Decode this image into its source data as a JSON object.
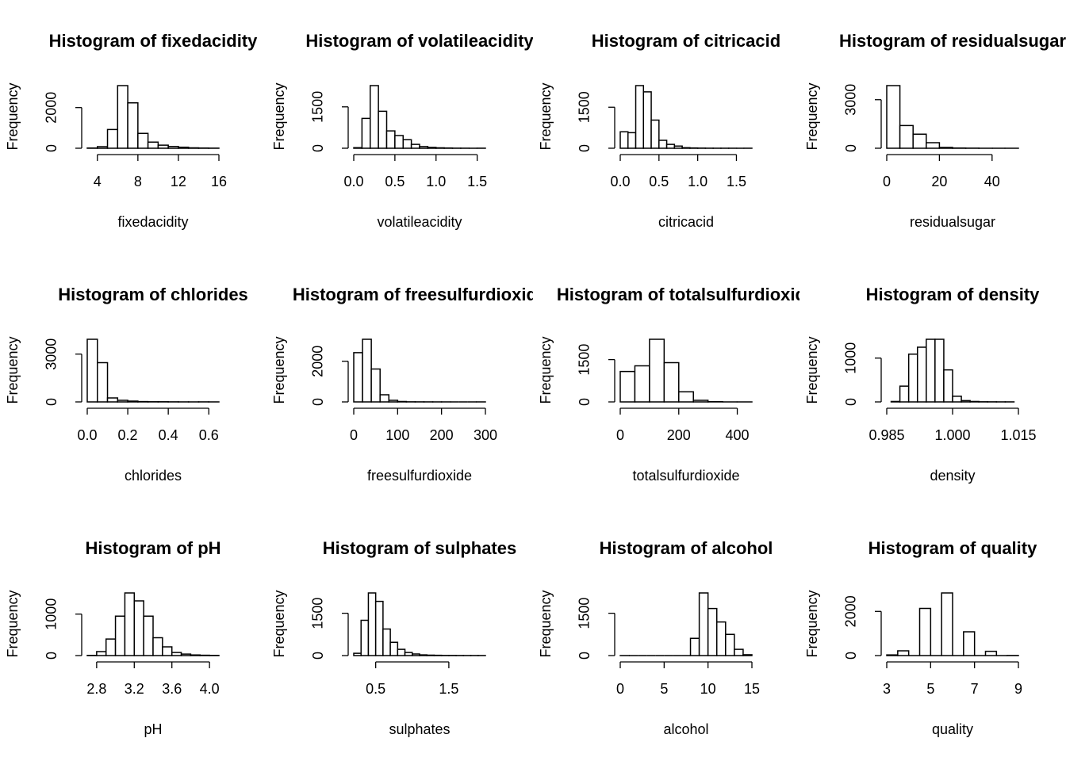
{
  "chart_data": [
    {
      "type": "histogram",
      "title": "Histogram of fixedacidity",
      "xlabel": "fixedacidity",
      "ylabel": "Frequency",
      "color": "#ffffff",
      "edgecolor": "#000000",
      "bins": [
        3,
        4,
        5,
        6,
        7,
        8,
        9,
        10,
        11,
        12,
        13,
        14,
        15,
        16
      ],
      "counts": [
        10,
        80,
        920,
        3080,
        2230,
        730,
        300,
        150,
        90,
        50,
        20,
        10,
        5
      ],
      "xlim": [
        3,
        16
      ],
      "ylim": [
        0,
        3080
      ],
      "xticks": [
        4,
        8,
        12,
        16
      ],
      "yticks": [
        0,
        2000
      ]
    },
    {
      "type": "histogram",
      "title": "Histogram of volatileacidity",
      "xlabel": "volatileacidity",
      "ylabel": "Frequency",
      "color": "#ffffff",
      "edgecolor": "#000000",
      "bins": [
        0,
        0.1,
        0.2,
        0.3,
        0.4,
        0.5,
        0.6,
        0.7,
        0.8,
        0.9,
        1,
        1.1,
        1.2,
        1.3,
        1.4,
        1.5,
        1.6
      ],
      "counts": [
        20,
        1080,
        2270,
        1340,
        630,
        460,
        310,
        140,
        60,
        30,
        15,
        8,
        3,
        2,
        0,
        2
      ],
      "xlim": [
        0,
        1.6
      ],
      "ylim": [
        0,
        2270
      ],
      "xticks": [
        {
          "value": 0,
          "label": "0.0"
        },
        0.5,
        {
          "value": 1,
          "label": "1.0"
        },
        1.5
      ],
      "yticks": [
        0,
        1500
      ]
    },
    {
      "type": "histogram",
      "title": "Histogram of citricacid",
      "xlabel": "citricacid",
      "ylabel": "Frequency",
      "color": "#ffffff",
      "edgecolor": "#000000",
      "bins": [
        0,
        0.1,
        0.2,
        0.3,
        0.4,
        0.5,
        0.6,
        0.7,
        0.8,
        0.9,
        1,
        1.1,
        1.2,
        1.3,
        1.4,
        1.5,
        1.6,
        1.7
      ],
      "counts": [
        600,
        570,
        2290,
        2060,
        1030,
        290,
        140,
        80,
        20,
        10,
        5,
        2,
        1,
        1,
        1,
        0,
        1
      ],
      "xlim": [
        0,
        1.7
      ],
      "ylim": [
        0,
        2290
      ],
      "xticks": [
        {
          "value": 0,
          "label": "0.0"
        },
        0.5,
        {
          "value": 1,
          "label": "1.0"
        },
        1.5
      ],
      "yticks": [
        0,
        1500
      ]
    },
    {
      "type": "histogram",
      "title": "Histogram of residualsugar",
      "xlabel": "residualsugar",
      "ylabel": "Frequency",
      "color": "#ffffff",
      "edgecolor": "#000000",
      "bins": [
        0,
        5,
        10,
        15,
        20,
        25,
        30,
        35,
        40,
        45,
        50
      ],
      "counts": [
        3870,
        1400,
        870,
        340,
        50,
        10,
        5,
        2,
        0,
        1
      ],
      "xlim": [
        0,
        50
      ],
      "ylim": [
        0,
        3870
      ],
      "xticks": [
        0,
        20,
        40
      ],
      "yticks": [
        0,
        3000
      ]
    },
    {
      "type": "histogram",
      "title": "Histogram of chlorides",
      "xlabel": "chlorides",
      "ylabel": "Frequency",
      "color": "#ffffff",
      "edgecolor": "#000000",
      "bins": [
        0,
        0.05,
        0.1,
        0.15,
        0.2,
        0.25,
        0.3,
        0.35,
        0.4,
        0.45,
        0.5,
        0.55,
        0.6,
        0.65
      ],
      "counts": [
        3930,
        2460,
        250,
        100,
        50,
        20,
        10,
        10,
        5,
        2,
        1,
        3,
        1
      ],
      "xlim": [
        0,
        0.65
      ],
      "ylim": [
        0,
        3930
      ],
      "xticks": [
        {
          "value": 0,
          "label": "0.0"
        },
        0.2,
        0.4,
        0.6
      ],
      "yticks": [
        0,
        3000
      ]
    },
    {
      "type": "histogram",
      "title": "Histogram of freesulfurdioxide",
      "xlabel": "freesulfurdioxide",
      "ylabel": "Frequency",
      "color": "#ffffff",
      "edgecolor": "#000000",
      "bins": [
        0,
        20,
        40,
        60,
        80,
        100,
        120,
        140,
        160,
        180,
        200,
        220,
        240,
        260,
        280,
        300
      ],
      "counts": [
        2420,
        3080,
        1620,
        350,
        80,
        20,
        5,
        3,
        2,
        1,
        1,
        0,
        0,
        0,
        1
      ],
      "xlim": [
        0,
        300
      ],
      "ylim": [
        0,
        3080
      ],
      "xticks": [
        0,
        100,
        200,
        300
      ],
      "yticks": [
        0,
        2000
      ]
    },
    {
      "type": "histogram",
      "title": "Histogram of totalsulfurdioxide",
      "xlabel": "totalsulfurdioxide",
      "ylabel": "Frequency",
      "color": "#ffffff",
      "edgecolor": "#000000",
      "bins": [
        0,
        50,
        100,
        150,
        200,
        250,
        300,
        350,
        400,
        450
      ],
      "counts": [
        1080,
        1280,
        2220,
        1390,
        360,
        55,
        8,
        0,
        1
      ],
      "xlim": [
        0,
        450
      ],
      "ylim": [
        0,
        2220
      ],
      "xticks": [
        0,
        200,
        400
      ],
      "yticks": [
        0,
        1500
      ]
    },
    {
      "type": "histogram",
      "title": "Histogram of density",
      "xlabel": "density",
      "ylabel": "Frequency",
      "color": "#ffffff",
      "edgecolor": "#000000",
      "bins": [
        0.986,
        0.988,
        0.99,
        0.992,
        0.994,
        0.996,
        0.998,
        1,
        1.002,
        1.004,
        1.006,
        1.008,
        1.01,
        1.012,
        1.014
      ],
      "counts": [
        10,
        360,
        1090,
        1250,
        1430,
        1430,
        730,
        130,
        30,
        10,
        3,
        2,
        1,
        1
      ],
      "xlim": [
        0.985,
        1.015
      ],
      "ylim": [
        0,
        1430
      ],
      "xticks": [
        0.985,
        {
          "value": 1,
          "label": "1.000"
        },
        1.015
      ],
      "yticks": [
        0,
        1000
      ]
    },
    {
      "type": "histogram",
      "title": "Histogram of pH",
      "xlabel": "pH",
      "ylabel": "Frequency",
      "color": "#ffffff",
      "edgecolor": "#000000",
      "bins": [
        2.7,
        2.8,
        2.9,
        3,
        3.1,
        3.2,
        3.3,
        3.4,
        3.5,
        3.6,
        3.7,
        3.8,
        3.9,
        4,
        4.1
      ],
      "counts": [
        5,
        95,
        400,
        950,
        1510,
        1320,
        950,
        430,
        210,
        75,
        35,
        15,
        8,
        5
      ],
      "xlim": [
        2.7,
        4.1
      ],
      "ylim": [
        0,
        1510
      ],
      "xticks": [
        2.8,
        3.2,
        3.6,
        {
          "value": 4,
          "label": "4.0"
        }
      ],
      "yticks": [
        0,
        1000
      ]
    },
    {
      "type": "histogram",
      "title": "Histogram of sulphates",
      "xlabel": "sulphates",
      "ylabel": "Frequency",
      "color": "#ffffff",
      "edgecolor": "#000000",
      "bins": [
        0.2,
        0.3,
        0.4,
        0.5,
        0.6,
        0.7,
        0.8,
        0.9,
        1,
        1.1,
        1.2,
        1.3,
        1.4,
        1.5,
        1.6,
        1.7,
        1.8,
        1.9,
        2
      ],
      "counts": [
        80,
        1250,
        2220,
        1920,
        940,
        470,
        220,
        110,
        55,
        25,
        15,
        10,
        5,
        5,
        3,
        2,
        2,
        2
      ],
      "xlim": [
        0.2,
        2
      ],
      "ylim": [
        0,
        2220
      ],
      "xticks": [
        0.5,
        1.5
      ],
      "yticks": [
        0,
        1500
      ]
    },
    {
      "type": "histogram",
      "title": "Histogram of alcohol",
      "xlabel": "alcohol",
      "ylabel": "Frequency",
      "color": "#ffffff",
      "edgecolor": "#000000",
      "bins": [
        0,
        1,
        2,
        3,
        4,
        5,
        6,
        7,
        8,
        9,
        10,
        11,
        12,
        13,
        14,
        15
      ],
      "counts": [
        1,
        0,
        0,
        0,
        0,
        0,
        0,
        0,
        610,
        2220,
        1670,
        1190,
        750,
        220,
        30
      ],
      "xlim": [
        0,
        15
      ],
      "ylim": [
        0,
        2220
      ],
      "xticks": [
        0,
        5,
        10,
        15
      ],
      "yticks": [
        0,
        1500
      ]
    },
    {
      "type": "histogram",
      "title": "Histogram of quality",
      "xlabel": "quality",
      "ylabel": "Frequency",
      "color": "#ffffff",
      "edgecolor": "#000000",
      "bins": [
        3,
        3.5,
        4,
        4.5,
        5,
        5.5,
        6,
        6.5,
        7,
        7.5,
        8,
        8.5,
        9
      ],
      "counts": [
        30,
        216,
        0,
        2138,
        0,
        2836,
        0,
        1079,
        0,
        193,
        0,
        5
      ],
      "xlim": [
        3,
        9
      ],
      "ylim": [
        0,
        2836
      ],
      "xticks": [
        3,
        5,
        7,
        9
      ],
      "yticks": [
        0,
        2000
      ]
    }
  ]
}
